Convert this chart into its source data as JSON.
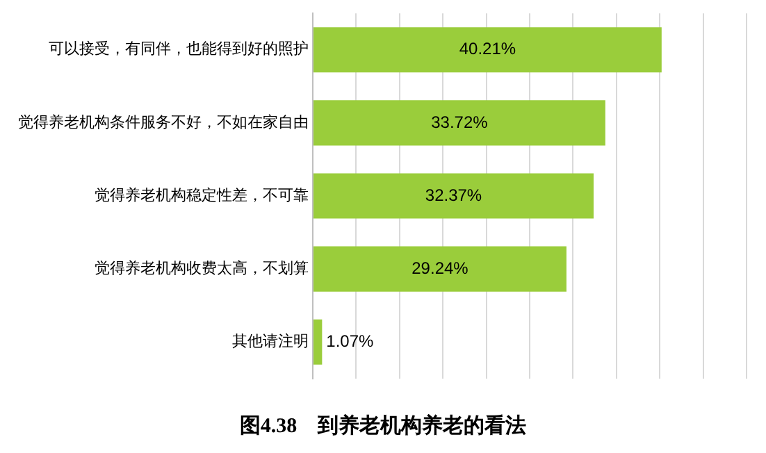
{
  "chart_data": {
    "type": "bar",
    "orientation": "horizontal",
    "title": "图4.38    到养老机构养老的看法",
    "categories": [
      "可以接受，有同伴，也能得到好的照护",
      "觉得养老机构条件服务不好，不如在家自由",
      "觉得养老机构稳定性差，不可靠",
      "觉得养老机构收费太高，不划算",
      "其他请注明"
    ],
    "values": [
      40.21,
      33.72,
      32.37,
      29.24,
      1.07
    ],
    "color": "#9acd3b",
    "value_labels": [
      "40.21%",
      "33.72%",
      "32.37%",
      "29.24%",
      "1.07%"
    ],
    "xlim": [
      0,
      50
    ],
    "xticks": [
      {
        "value": 0,
        "label": null
      },
      {
        "value": 5,
        "label": null
      },
      {
        "value": 10,
        "label": null
      },
      {
        "value": 15,
        "label": null
      },
      {
        "value": 20,
        "label": null
      },
      {
        "value": 25,
        "label": null
      },
      {
        "value": 30,
        "label": null
      },
      {
        "value": 35,
        "label": null
      },
      {
        "value": 40,
        "label": null
      },
      {
        "value": 45,
        "label": null
      },
      {
        "value": 50,
        "label": null
      }
    ],
    "grid": "x",
    "tick_labels": "y",
    "legend": false
  }
}
